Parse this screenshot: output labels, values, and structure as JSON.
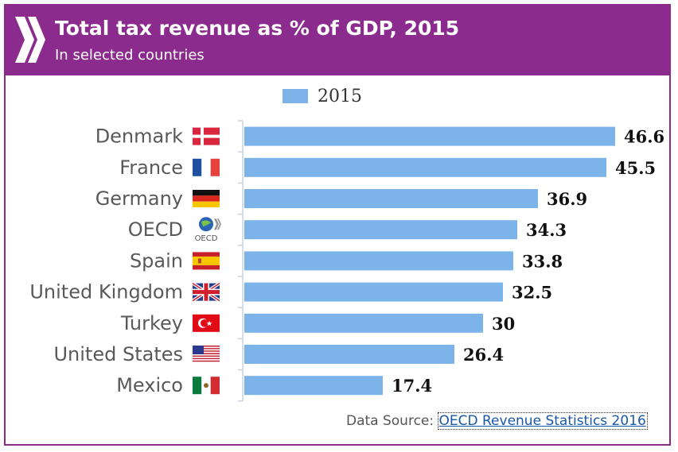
{
  "header": {
    "title": "Total tax revenue as % of GDP, 2015",
    "subtitle": "In selected countries"
  },
  "source": {
    "prefix": "Data Source: ",
    "link_text": "OECD Revenue Statistics 2016"
  },
  "colors": {
    "header_bg": "#8b2b8e",
    "bar": "#7cb4ea",
    "frame": "#8a2a8a"
  },
  "chart_data": {
    "type": "bar",
    "orientation": "horizontal",
    "title": "Total tax revenue as % of GDP, 2015",
    "subtitle": "In selected countries",
    "legend": [
      "2015"
    ],
    "legend_position": "top",
    "categories": [
      "Denmark",
      "France",
      "Germany",
      "OECD",
      "Spain",
      "United Kingdom",
      "Turkey",
      "United States",
      "Mexico"
    ],
    "flag_icons": [
      "denmark-flag-icon",
      "france-flag-icon",
      "germany-flag-icon",
      "oecd-logo-icon",
      "spain-flag-icon",
      "united-kingdom-flag-icon",
      "turkey-flag-icon",
      "united-states-flag-icon",
      "mexico-flag-icon"
    ],
    "series": [
      {
        "name": "2015",
        "values": [
          46.6,
          45.5,
          36.9,
          34.3,
          33.8,
          32.5,
          30,
          26.4,
          17.4
        ],
        "value_labels": [
          "46.6",
          "45.5",
          "36.9",
          "34.3",
          "33.8",
          "32.5",
          "30",
          "26.4",
          "17.4"
        ]
      }
    ],
    "xlim": [
      0,
      50
    ],
    "xlabel": "",
    "ylabel": "",
    "grid": false
  }
}
